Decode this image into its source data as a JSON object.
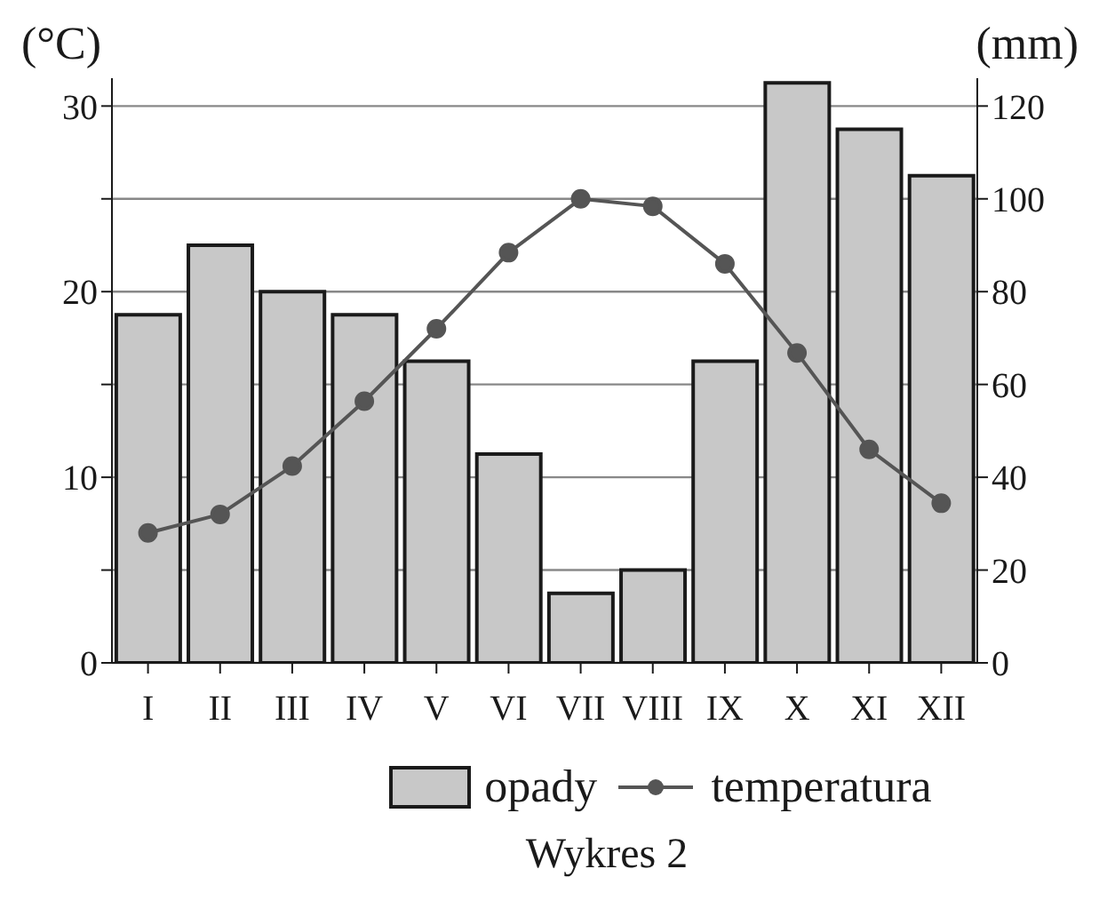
{
  "chart_data": {
    "type": "bar",
    "ylabel": "(°C)",
    "y2label": "(mm)",
    "annotations": [
      "Wykres 2"
    ],
    "categories": [
      "I",
      "II",
      "III",
      "IV",
      "V",
      "VI",
      "VII",
      "VIII",
      "IX",
      "X",
      "XI",
      "XII"
    ],
    "series": [
      {
        "name": "opady",
        "axis": "y2",
        "color": "#c8c8c8",
        "values": [
          75,
          90,
          80,
          75,
          65,
          45,
          15,
          20,
          65,
          125,
          115,
          105
        ]
      },
      {
        "name": "temperatura",
        "type": "line",
        "axis": "y",
        "color": "#555555",
        "marker": "circle",
        "values": [
          7,
          8,
          10.6,
          14.1,
          18,
          22.1,
          25,
          24.6,
          21.5,
          16.7,
          11.5,
          8.6
        ]
      }
    ],
    "ylim": [
      0,
      31.5
    ],
    "yticks": [
      0,
      {
        "value": 5,
        "label": null
      },
      10,
      {
        "value": 15,
        "label": null
      },
      20,
      {
        "value": 25,
        "label": null
      },
      30
    ],
    "y2lim": [
      0,
      126
    ],
    "y2ticks": [
      0,
      20,
      40,
      60,
      80,
      100,
      120
    ],
    "grid": "y",
    "legend": "bottom"
  }
}
